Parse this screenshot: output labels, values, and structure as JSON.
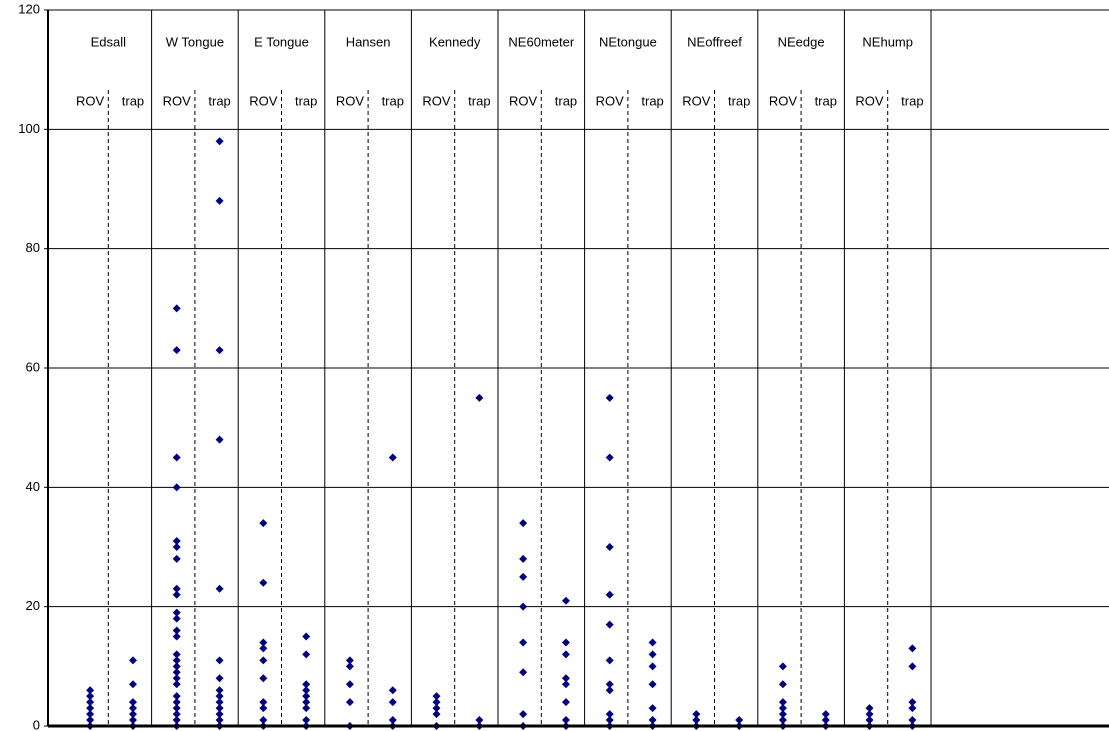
{
  "chart_data": {
    "type": "strip",
    "ylim": [
      0,
      120
    ],
    "yticks": [
      0,
      20,
      40,
      60,
      80,
      100,
      120
    ],
    "grid": true,
    "color": "#00007f",
    "groups": [
      {
        "name": "Edsall",
        "columns": [
          {
            "label": "ROV",
            "values": [
              6,
              5,
              4,
              3,
              2,
              1,
              0
            ]
          },
          {
            "label": "trap",
            "values": [
              11,
              7,
              4,
              3,
              2,
              1,
              0
            ]
          }
        ]
      },
      {
        "name": "W Tongue",
        "columns": [
          {
            "label": "ROV",
            "values": [
              70,
              63,
              45,
              40,
              31,
              30,
              28,
              23,
              22,
              19,
              18,
              16,
              15,
              12,
              11,
              10,
              9,
              8,
              7,
              5,
              4,
              3,
              2,
              1,
              0
            ]
          },
          {
            "label": "trap",
            "values": [
              98,
              88,
              63,
              48,
              23,
              11,
              8,
              6,
              5,
              4,
              3,
              2,
              1,
              0
            ]
          }
        ]
      },
      {
        "name": "E Tongue",
        "columns": [
          {
            "label": "ROV",
            "values": [
              34,
              24,
              14,
              13,
              11,
              8,
              4,
              3,
              1,
              0
            ]
          },
          {
            "label": "trap",
            "values": [
              15,
              12,
              7,
              6,
              5,
              4,
              3,
              1,
              0
            ]
          }
        ]
      },
      {
        "name": "Hansen",
        "columns": [
          {
            "label": "ROV",
            "values": [
              11,
              10,
              7,
              4,
              0
            ]
          },
          {
            "label": "trap",
            "values": [
              45,
              6,
              4,
              1,
              0
            ]
          }
        ]
      },
      {
        "name": "Kennedy",
        "columns": [
          {
            "label": "ROV",
            "values": [
              5,
              4,
              3,
              2,
              0
            ]
          },
          {
            "label": "trap",
            "values": [
              55,
              1,
              0
            ]
          }
        ]
      },
      {
        "name": "NE60meter",
        "columns": [
          {
            "label": "ROV",
            "values": [
              34,
              28,
              25,
              20,
              14,
              9,
              2,
              0
            ]
          },
          {
            "label": "trap",
            "values": [
              21,
              14,
              12,
              8,
              7,
              4,
              1,
              0
            ]
          }
        ]
      },
      {
        "name": "NEtongue",
        "columns": [
          {
            "label": "ROV",
            "values": [
              55,
              45,
              30,
              22,
              17,
              11,
              7,
              6,
              2,
              1,
              0
            ]
          },
          {
            "label": "trap",
            "values": [
              14,
              12,
              10,
              7,
              3,
              1,
              0
            ]
          }
        ]
      },
      {
        "name": "NEoffreef",
        "columns": [
          {
            "label": "ROV",
            "values": [
              2,
              1,
              0
            ]
          },
          {
            "label": "trap",
            "values": [
              1,
              0
            ]
          }
        ]
      },
      {
        "name": "NEedge",
        "columns": [
          {
            "label": "ROV",
            "values": [
              10,
              7,
              4,
              3,
              2,
              1,
              0
            ]
          },
          {
            "label": "trap",
            "values": [
              2,
              1,
              0
            ]
          }
        ]
      },
      {
        "name": "NEhump",
        "columns": [
          {
            "label": "ROV",
            "values": [
              3,
              2,
              1,
              0
            ]
          },
          {
            "label": "trap",
            "values": [
              13,
              10,
              4,
              3,
              1,
              0
            ]
          }
        ]
      }
    ]
  }
}
